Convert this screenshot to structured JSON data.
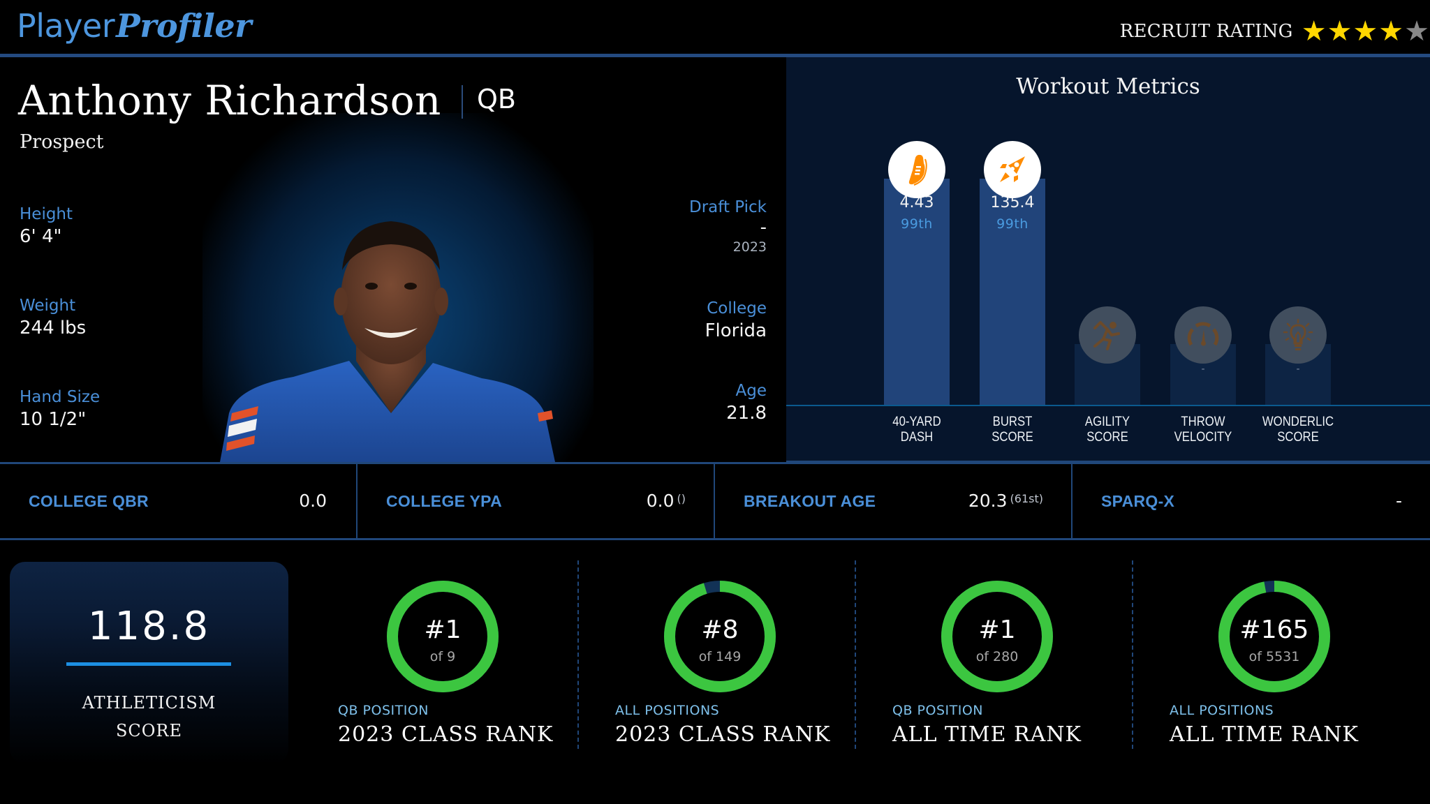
{
  "header": {
    "logo_part1": "Player",
    "logo_part2": "Profiler",
    "recruit_label": "RECRUIT RATING",
    "recruit_stars": 4,
    "recruit_stars_max": 5,
    "star_filled_color": "#ffd700",
    "star_empty_color": "#888888"
  },
  "player": {
    "name": "Anthony Richardson",
    "position": "QB",
    "status": "Prospect",
    "left_stats": [
      {
        "label": "Height",
        "value": "6' 4\""
      },
      {
        "label": "Weight",
        "value": "244 lbs"
      },
      {
        "label": "Hand Size",
        "value": "10 1/2\""
      }
    ],
    "right_stats": [
      {
        "label": "Draft Pick",
        "value": "-",
        "sub": "2023"
      },
      {
        "label": "College",
        "value": "Florida"
      },
      {
        "label": "Age",
        "value": "21.8"
      }
    ],
    "photo_icon": "player-headshot-photo"
  },
  "workout": {
    "title": "Workout Metrics",
    "metrics": [
      {
        "label_line1": "40-YARD",
        "label_line2": "DASH",
        "value": "4.43",
        "percentile": "99th",
        "icon": "running-shoe-icon",
        "active": true
      },
      {
        "label_line1": "BURST",
        "label_line2": "SCORE",
        "value": "135.4",
        "percentile": "99th",
        "icon": "rocket-icon",
        "active": true
      },
      {
        "label_line1": "AGILITY",
        "label_line2": "SCORE",
        "value": "",
        "percentile": "",
        "icon": "sprinter-icon",
        "active": false
      },
      {
        "label_line1": "THROW",
        "label_line2": "VELOCITY",
        "value": "-",
        "percentile": "",
        "icon": "speedometer-icon",
        "active": false
      },
      {
        "label_line1": "WONDERLIC",
        "label_line2": "SCORE",
        "value": "-",
        "percentile": "",
        "icon": "lightbulb-icon",
        "active": false
      }
    ],
    "icon_active_color": "#ff8c00",
    "icon_inactive_color": "#6b4a2a"
  },
  "college_stats": [
    {
      "label": "COLLEGE QBR",
      "value": "0.0",
      "sub": ""
    },
    {
      "label": "COLLEGE YPA",
      "value": "0.0",
      "sub": "()"
    },
    {
      "label": "BREAKOUT AGE",
      "value": "20.3",
      "sub": "(61st)"
    },
    {
      "label": "SPARQ-X",
      "value": "-",
      "sub": ""
    }
  ],
  "athleticism": {
    "score": "118.8",
    "label_line1": "ATHLETICISM",
    "label_line2": "SCORE"
  },
  "ranks": [
    {
      "rank": "#1",
      "of": "of 9",
      "subtitle": "QB POSITION",
      "title": "2023 CLASS RANK",
      "rank_num": 1,
      "total": 9
    },
    {
      "rank": "#8",
      "of": "of 149",
      "subtitle": "ALL POSITIONS",
      "title": "2023 CLASS RANK",
      "rank_num": 8,
      "total": 149
    },
    {
      "rank": "#1",
      "of": "of 280",
      "subtitle": "QB POSITION",
      "title": "ALL TIME RANK",
      "rank_num": 1,
      "total": 280
    },
    {
      "rank": "#165",
      "of": "of 5531",
      "subtitle": "ALL POSITIONS",
      "title": "ALL TIME RANK",
      "rank_num": 165,
      "total": 5531
    }
  ],
  "colors": {
    "accent_blue": "#4a8fd8",
    "ring_green": "#3cc640",
    "ring_track": "#123256",
    "panel_bg": "#06152c",
    "bar_active": "#21447a"
  }
}
